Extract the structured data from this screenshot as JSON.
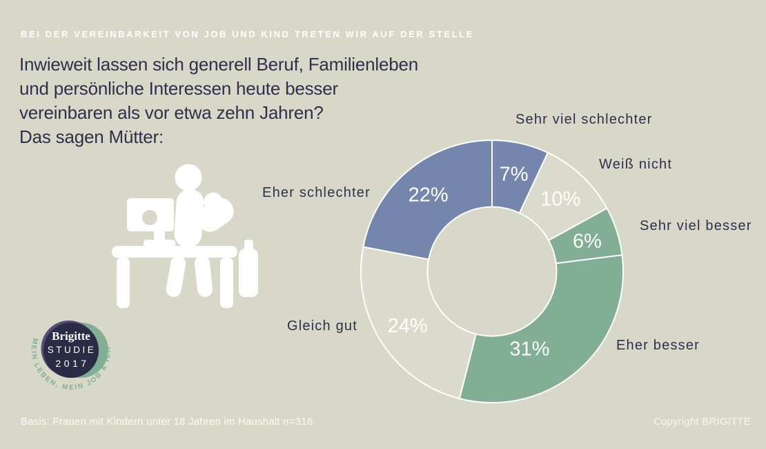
{
  "colors": {
    "background": "#d7d8c8",
    "beige_segment": "#dbdbcd",
    "navy_text": "#2f2f4c",
    "blue": "#7586ad",
    "green": "#81ae95",
    "white": "#ffffff"
  },
  "page": {
    "kicker": "BEI DER VEREINBARKEIT VON JOB UND KIND TRETEN WIR AUF DER STELLE",
    "question_lines": [
      "Inwieweit lassen sich generell Beruf, Familienleben",
      "und persönliche Interessen heute besser",
      "vereinbaren als vor etwa zehn Jahren?",
      "Das sagen Mütter:"
    ],
    "footnote": "Basis: Frauen mit Kindern unter 18 Jahren im Haushalt n=316",
    "copyright": "Copyright BRIGITTE"
  },
  "logo": {
    "brand": "Brigitte",
    "line1": "STUDIE",
    "line2": "2017",
    "arc_text": "MEIN LEBEN, MEIN JOB & ICH",
    "navy": "#2a2b45",
    "purple": "#564d77",
    "green": "#81ae95"
  },
  "chart_data": {
    "type": "pie",
    "donut": true,
    "unit": "%",
    "start_angle_deg": 0,
    "direction": "clockwise",
    "separator_color": "#ffffff",
    "note": "Basis: Frauen mit Kindern unter 18 Jahren im Haushalt n=316",
    "segments": [
      {
        "label": "Sehr viel schlechter",
        "value": 7,
        "pct_label": "7%",
        "color": "#7586ad"
      },
      {
        "label": "Weiß nicht",
        "value": 10,
        "pct_label": "10%",
        "color": "#dbdbcd"
      },
      {
        "label": "Sehr viel besser",
        "value": 6,
        "pct_label": "6%",
        "color": "#81ae95"
      },
      {
        "label": "Eher besser",
        "value": 31,
        "pct_label": "31%",
        "color": "#81ae95",
        "label_angle": 154,
        "label_radius": 124
      },
      {
        "label": "Gleich gut",
        "value": 24,
        "pct_label": "24%",
        "color": "#dbdbcd"
      },
      {
        "label": "Eher schlechter",
        "value": 22,
        "pct_label": "22%",
        "color": "#7586ad"
      }
    ]
  }
}
